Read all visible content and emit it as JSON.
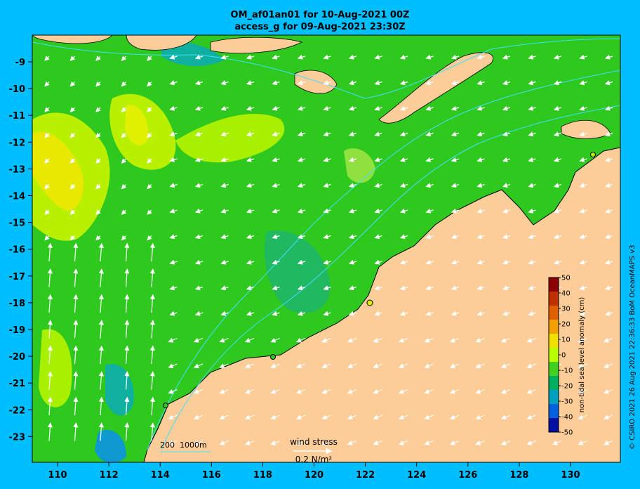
{
  "title": {
    "line1": "OM_af01an01 for 10-Aug-2021 00Z",
    "line2": "access_g for 09-Aug-2021 23:30Z"
  },
  "axes": {
    "x_ticks": [
      "110",
      "112",
      "114",
      "116",
      "118",
      "120",
      "122",
      "124",
      "126",
      "128",
      "130"
    ],
    "y_ticks": [
      "-9",
      "-10",
      "-11",
      "-12",
      "-13",
      "-14",
      "-15",
      "-16",
      "-17",
      "-18",
      "-19",
      "-20",
      "-21",
      "-22",
      "-23"
    ]
  },
  "colorbar": {
    "label": "non-tidal sea level anomaly (cm)",
    "ticks": [
      "50",
      "40",
      "30",
      "20",
      "10",
      "0",
      "-10",
      "-20",
      "-30",
      "-40",
      "-50"
    ],
    "colors": [
      "#8b0000",
      "#c03000",
      "#e06000",
      "#f0a000",
      "#f0e000",
      "#b8ff00",
      "#40d020",
      "#00b060",
      "#00a0c0",
      "#0060e0",
      "#0010a0"
    ]
  },
  "legend": {
    "wind_stress_title": "wind stress",
    "wind_stress_value": "0.2 N/m²",
    "contours": "200  1000m"
  },
  "credit": "© CSIRO 2021  26 Aug 2021 22:36:33 BoM OceanMAPS v3",
  "colors": {
    "land": "#fccc99",
    "ocean_base": "#2ec81e",
    "background": "#00bfff",
    "contour": "#40e0ff"
  }
}
